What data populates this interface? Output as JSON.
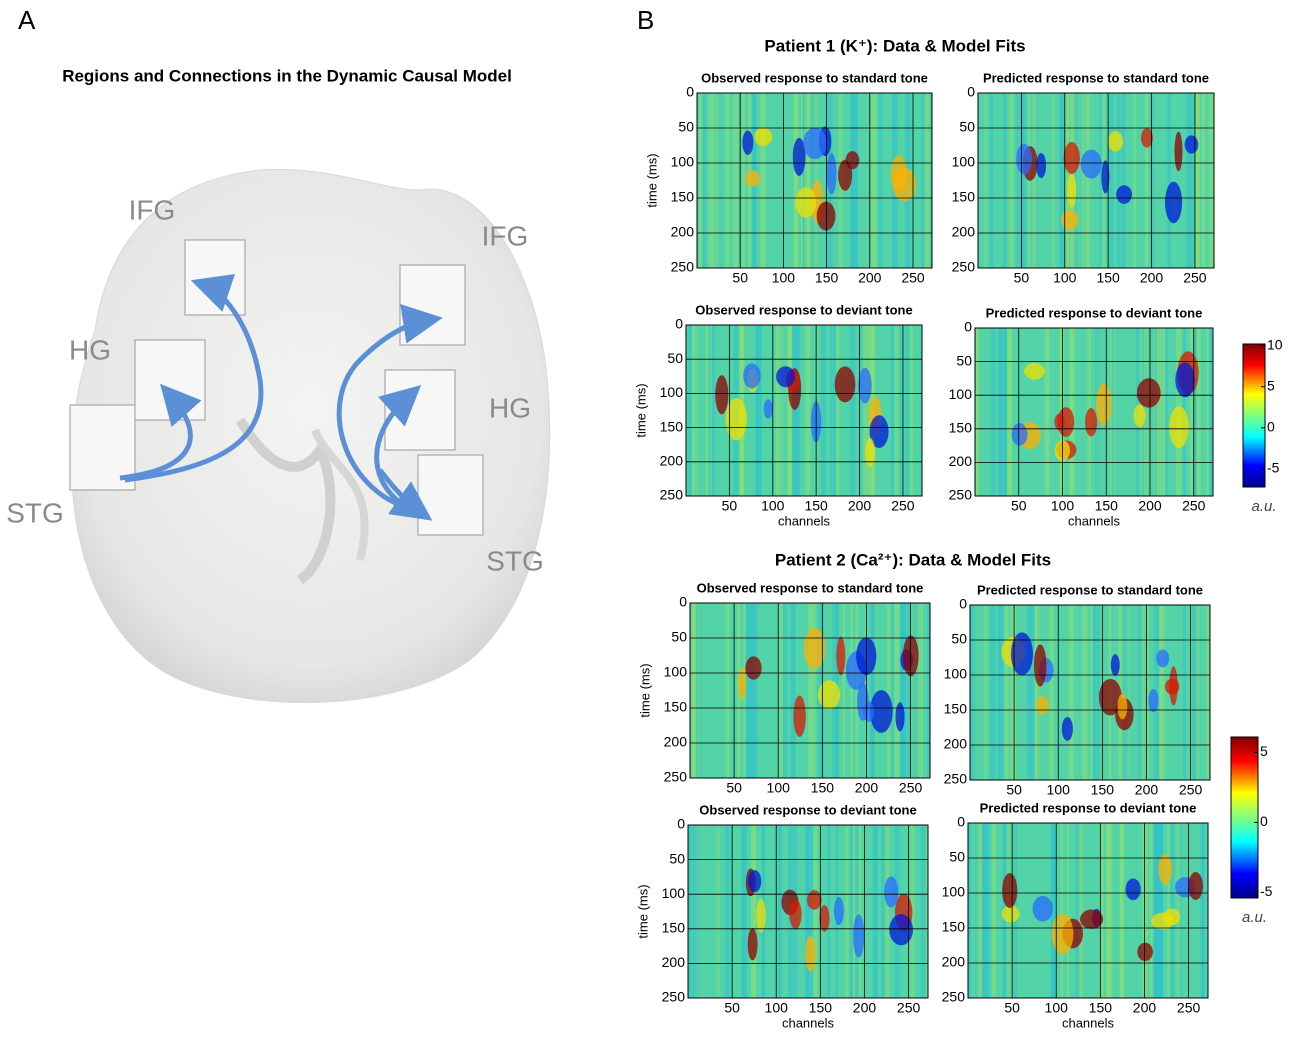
{
  "panel_a": {
    "label": "A",
    "title": "Regions and Connections in the Dynamic Causal Model",
    "regions": [
      "IFG",
      "IFG",
      "HG",
      "HG",
      "STG",
      "STG"
    ]
  },
  "panel_b": {
    "label": "B",
    "xlabel": "channels",
    "ylabel": "time (ms)",
    "xlim": [
      0,
      272
    ],
    "ylim": [
      0,
      250
    ],
    "xticks": [
      50,
      100,
      150,
      200,
      250
    ],
    "yticks": [
      0,
      50,
      100,
      150,
      200,
      250
    ],
    "patients": [
      {
        "title": "Patient 1 (K⁺):   Data   &   Model Fits",
        "plots": [
          "Observed  response to standard tone",
          "Predicted response to standard tone",
          "Observed  response to deviant tone",
          "Predicted response to deviant tone"
        ],
        "colorbar": {
          "lim": [
            -7.2,
            10.2
          ],
          "ticks": [
            10,
            5,
            0,
            -5
          ],
          "unit": "a.u."
        }
      },
      {
        "title": "Patient 2 (Ca²⁺):   Data   &   Model Fits",
        "plots": [
          "Observed  response to standard tone",
          "Predicted response to standard tone",
          "Observed  response to deviant tone",
          "Predicted response to deviant tone"
        ],
        "colorbar": {
          "lim": [
            -5.4,
            6.1
          ],
          "ticks": [
            5,
            0,
            -5
          ],
          "unit": "a.u."
        }
      }
    ]
  }
}
